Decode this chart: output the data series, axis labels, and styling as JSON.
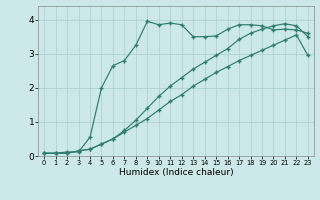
{
  "xlabel": "Humidex (Indice chaleur)",
  "bg_color": "#cce8e8",
  "line_color": "#2e7d6e",
  "grid_color": "#aacece",
  "xlim": [
    -0.5,
    23.5
  ],
  "ylim": [
    0,
    4.4
  ],
  "xticks": [
    0,
    1,
    2,
    3,
    4,
    5,
    6,
    7,
    8,
    9,
    10,
    11,
    12,
    13,
    14,
    15,
    16,
    17,
    18,
    19,
    20,
    21,
    22,
    23
  ],
  "yticks": [
    0,
    1,
    2,
    3,
    4
  ],
  "line1_x": [
    0,
    1,
    2,
    3,
    4,
    5,
    6,
    7,
    8,
    9,
    10,
    11,
    12,
    13,
    14,
    15,
    16,
    17,
    18,
    19,
    20,
    21,
    22,
    23
  ],
  "line1_y": [
    0.08,
    0.08,
    0.08,
    0.15,
    0.2,
    0.35,
    0.5,
    0.7,
    0.9,
    1.1,
    1.35,
    1.6,
    1.8,
    2.05,
    2.25,
    2.45,
    2.62,
    2.8,
    2.95,
    3.1,
    3.25,
    3.4,
    3.55,
    2.95
  ],
  "line2_x": [
    0,
    1,
    2,
    3,
    4,
    5,
    6,
    7,
    8,
    9,
    10,
    11,
    12,
    13,
    14,
    15,
    16,
    17,
    18,
    19,
    20,
    21,
    22,
    23
  ],
  "line2_y": [
    0.08,
    0.08,
    0.08,
    0.15,
    0.2,
    0.35,
    0.5,
    0.75,
    1.05,
    1.4,
    1.75,
    2.05,
    2.3,
    2.55,
    2.75,
    2.95,
    3.15,
    3.42,
    3.6,
    3.72,
    3.82,
    3.88,
    3.82,
    3.5
  ],
  "line3_x": [
    0,
    1,
    2,
    3,
    4,
    5,
    6,
    7,
    8,
    9,
    10,
    11,
    12,
    13,
    14,
    15,
    16,
    17,
    18,
    19,
    20,
    21,
    22,
    23
  ],
  "line3_y": [
    0.08,
    0.08,
    0.12,
    0.12,
    0.55,
    2.0,
    2.65,
    2.8,
    3.25,
    3.95,
    3.85,
    3.9,
    3.85,
    3.5,
    3.5,
    3.52,
    3.72,
    3.85,
    3.85,
    3.82,
    3.7,
    3.72,
    3.7,
    3.6
  ]
}
